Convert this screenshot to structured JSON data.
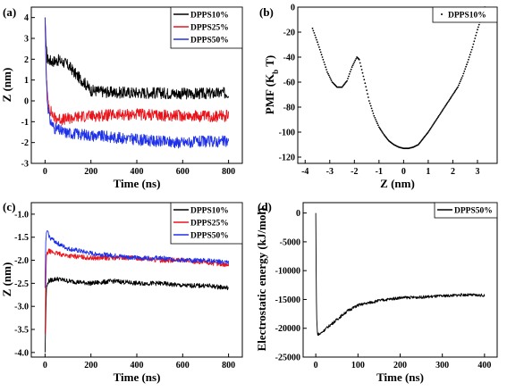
{
  "chart_data": [
    {
      "panel": "(a)",
      "type": "line",
      "xlabel": "Time (ns)",
      "ylabel": "Z (nm)",
      "xlim": [
        -60,
        860
      ],
      "ylim": [
        -3,
        4.5
      ],
      "xticks": [
        0,
        200,
        400,
        600,
        800
      ],
      "yticks": [
        -3,
        -2,
        -1,
        0,
        1,
        2,
        3,
        4
      ],
      "legend_position": "top-right",
      "series": [
        {
          "name": "DPPS10%",
          "color": "#000000",
          "points": [
            [
              0,
              4
            ],
            [
              5,
              2.5
            ],
            [
              10,
              2
            ],
            [
              30,
              1.9
            ],
            [
              60,
              1.95
            ],
            [
              90,
              1.8
            ],
            [
              110,
              1.6
            ],
            [
              140,
              1.2
            ],
            [
              170,
              0.9
            ],
            [
              200,
              0.5
            ],
            [
              250,
              0.45
            ],
            [
              300,
              0.4
            ],
            [
              400,
              0.4
            ],
            [
              500,
              0.38
            ],
            [
              600,
              0.35
            ],
            [
              700,
              0.35
            ],
            [
              800,
              0.38
            ]
          ]
        },
        {
          "name": "DPPS25%",
          "color": "#e8141b",
          "points": [
            [
              0,
              4
            ],
            [
              5,
              1.5
            ],
            [
              10,
              0.2
            ],
            [
              20,
              -0.4
            ],
            [
              40,
              -0.8
            ],
            [
              80,
              -0.9
            ],
            [
              150,
              -0.75
            ],
            [
              250,
              -0.7
            ],
            [
              400,
              -0.65
            ],
            [
              500,
              -0.7
            ],
            [
              600,
              -0.7
            ],
            [
              700,
              -0.75
            ],
            [
              800,
              -0.72
            ]
          ]
        },
        {
          "name": "DPPS50%",
          "color": "#1f31e8",
          "points": [
            [
              0,
              4
            ],
            [
              5,
              1.2
            ],
            [
              10,
              0
            ],
            [
              20,
              -0.9
            ],
            [
              40,
              -1.3
            ],
            [
              80,
              -1.5
            ],
            [
              150,
              -1.6
            ],
            [
              250,
              -1.7
            ],
            [
              400,
              -1.85
            ],
            [
              500,
              -1.95
            ],
            [
              600,
              -2.0
            ],
            [
              700,
              -1.95
            ],
            [
              800,
              -1.95
            ]
          ]
        }
      ]
    },
    {
      "panel": "(b)",
      "type": "scatter",
      "xlabel": "Z (nm)",
      "ylabel": "PMF (K_b T)",
      "xlim": [
        -4.3,
        3.8
      ],
      "ylim": [
        -125,
        0
      ],
      "xticks": [
        -4,
        -3,
        -2,
        -1,
        0,
        1,
        2,
        3
      ],
      "yticks": [
        -120,
        -100,
        -80,
        -60,
        -40,
        -20,
        0
      ],
      "legend_position": "top-right",
      "series": [
        {
          "name": "DPPS10%",
          "color": "#000000",
          "points": [
            [
              -3.7,
              -17
            ],
            [
              -3.5,
              -28
            ],
            [
              -3.3,
              -40
            ],
            [
              -3.1,
              -52
            ],
            [
              -2.9,
              -60
            ],
            [
              -2.7,
              -64
            ],
            [
              -2.5,
              -64
            ],
            [
              -2.3,
              -59
            ],
            [
              -2.1,
              -48
            ],
            [
              -1.9,
              -40
            ],
            [
              -1.8,
              -42
            ],
            [
              -1.6,
              -58
            ],
            [
              -1.4,
              -75
            ],
            [
              -1.2,
              -87
            ],
            [
              -1.0,
              -96
            ],
            [
              -0.8,
              -102
            ],
            [
              -0.6,
              -107
            ],
            [
              -0.4,
              -110
            ],
            [
              -0.2,
              -112
            ],
            [
              0,
              -113
            ],
            [
              0.2,
              -113
            ],
            [
              0.4,
              -112
            ],
            [
              0.6,
              -110
            ],
            [
              0.8,
              -105
            ],
            [
              1.0,
              -100
            ],
            [
              1.2,
              -94
            ],
            [
              1.4,
              -88
            ],
            [
              1.6,
              -82
            ],
            [
              1.8,
              -76
            ],
            [
              2.0,
              -70
            ],
            [
              2.2,
              -64
            ],
            [
              2.4,
              -55
            ],
            [
              2.6,
              -44
            ],
            [
              2.8,
              -32
            ],
            [
              3.0,
              -18
            ],
            [
              3.2,
              -6
            ],
            [
              3.3,
              0
            ]
          ]
        }
      ]
    },
    {
      "panel": "(c)",
      "type": "line",
      "xlabel": "Time (ns)",
      "ylabel": "Z (nm)",
      "xlim": [
        -60,
        860
      ],
      "ylim": [
        -4.1,
        -0.75
      ],
      "xticks": [
        0,
        200,
        400,
        600,
        800
      ],
      "yticks": [
        -4.0,
        -3.5,
        -3.0,
        -2.5,
        -2.0,
        -1.5,
        -1.0
      ],
      "legend_position": "top-right",
      "series": [
        {
          "name": "DPPS10%",
          "color": "#000000",
          "points": [
            [
              0,
              -4
            ],
            [
              3,
              -3.2
            ],
            [
              6,
              -2.6
            ],
            [
              15,
              -2.45
            ],
            [
              50,
              -2.4
            ],
            [
              100,
              -2.45
            ],
            [
              200,
              -2.5
            ],
            [
              300,
              -2.45
            ],
            [
              400,
              -2.5
            ],
            [
              500,
              -2.5
            ],
            [
              600,
              -2.55
            ],
            [
              700,
              -2.55
            ],
            [
              800,
              -2.6
            ]
          ]
        },
        {
          "name": "DPPS25%",
          "color": "#e8141b",
          "points": [
            [
              0,
              -3.6
            ],
            [
              3,
              -2.5
            ],
            [
              6,
              -1.9
            ],
            [
              15,
              -1.8
            ],
            [
              50,
              -1.85
            ],
            [
              100,
              -1.9
            ],
            [
              200,
              -1.95
            ],
            [
              300,
              -1.95
            ],
            [
              400,
              -1.95
            ],
            [
              500,
              -2.0
            ],
            [
              600,
              -2.0
            ],
            [
              700,
              -2.05
            ],
            [
              800,
              -2.1
            ]
          ]
        },
        {
          "name": "DPPS50%",
          "color": "#1f31e8",
          "points": [
            [
              0,
              -2.6
            ],
            [
              3,
              -1.6
            ],
            [
              8,
              -1.35
            ],
            [
              20,
              -1.5
            ],
            [
              60,
              -1.65
            ],
            [
              100,
              -1.75
            ],
            [
              200,
              -1.85
            ],
            [
              300,
              -1.9
            ],
            [
              400,
              -1.95
            ],
            [
              500,
              -1.95
            ],
            [
              600,
              -2.0
            ],
            [
              700,
              -2.0
            ],
            [
              800,
              -2.05
            ]
          ]
        }
      ]
    },
    {
      "panel": "(d)",
      "type": "line",
      "xlabel": "Time (ns)",
      "ylabel": "Electrostatic energy (kJ/mol)",
      "xlim": [
        -30,
        430
      ],
      "ylim": [
        -25000,
        1800
      ],
      "xticks": [
        0,
        100,
        200,
        300,
        400
      ],
      "yticks": [
        -25000,
        -20000,
        -15000,
        -10000,
        -5000,
        0
      ],
      "legend_position": "top-right",
      "series": [
        {
          "name": "DPPS50%",
          "color": "#000000",
          "points": [
            [
              0,
              0
            ],
            [
              1,
              -12000
            ],
            [
              2,
              -18000
            ],
            [
              4,
              -21000
            ],
            [
              10,
              -21000
            ],
            [
              25,
              -20000
            ],
            [
              50,
              -18500
            ],
            [
              75,
              -17000
            ],
            [
              100,
              -16000
            ],
            [
              150,
              -15200
            ],
            [
              200,
              -14700
            ],
            [
              250,
              -14600
            ],
            [
              300,
              -14400
            ],
            [
              350,
              -14200
            ],
            [
              400,
              -14300
            ]
          ]
        }
      ]
    }
  ]
}
